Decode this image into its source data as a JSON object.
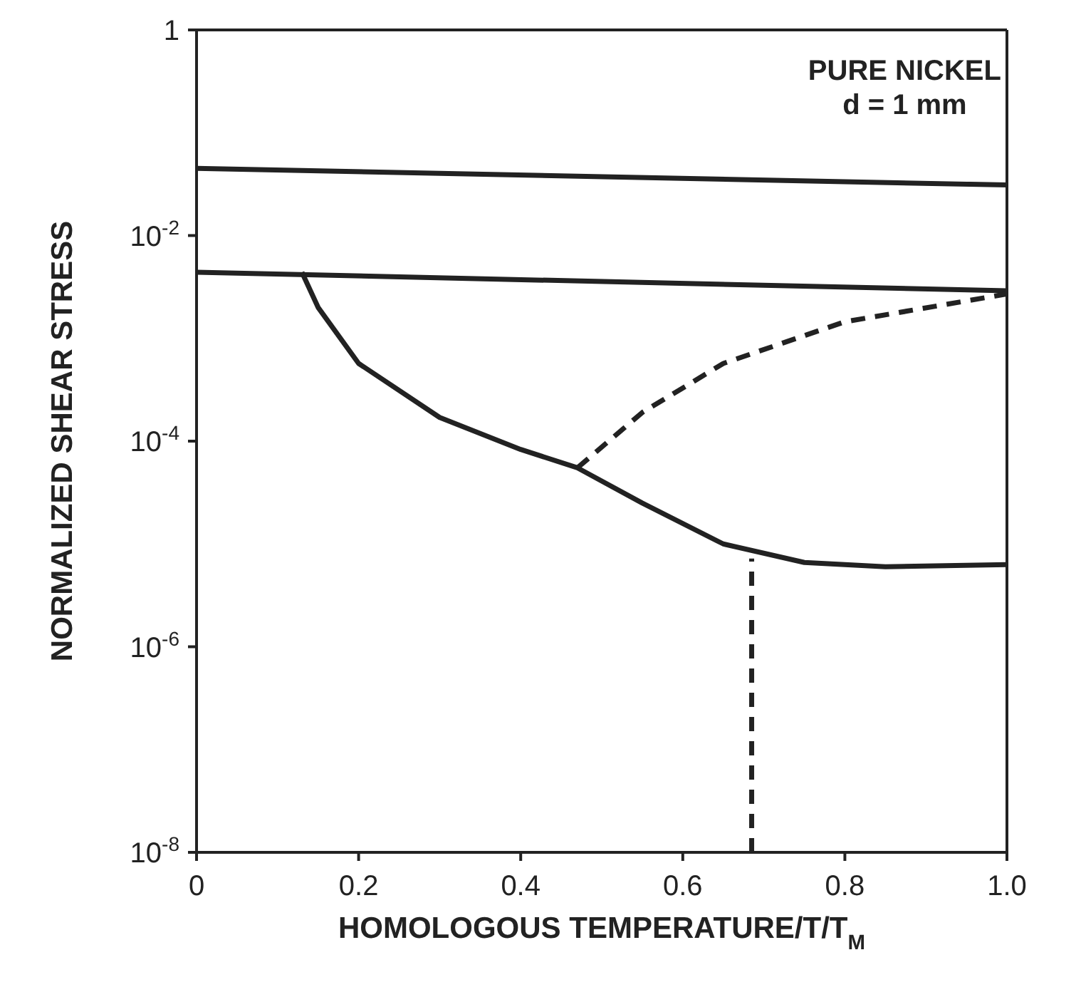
{
  "chart_data": {
    "type": "line",
    "xlabel": "HOMOLOGOUS TEMPERATURE/T/T$_{M}$",
    "ylabel": "NORMALIZED SHEAR STRESS",
    "log": "y",
    "xlim": [
      0,
      1
    ],
    "ylim": [
      1e-08,
      1
    ],
    "xticks": [
      0,
      0.2,
      0.4,
      0.6,
      0.8,
      {
        "value": 1,
        "label": "1.0"
      }
    ],
    "yticks": [
      {
        "value": 1e-08,
        "label": "10$^{-8}$"
      },
      {
        "value": 1e-06,
        "label": "10$^{-6}$"
      },
      {
        "value": 0.0001,
        "label": "10$^{-4}$"
      },
      {
        "value": 0.01,
        "label": "10$^{-2}$"
      },
      1
    ],
    "annotations": [
      "PURE NICKEL",
      "d = 1 mm"
    ],
    "marker": "none",
    "series": [
      {
        "color": "#222222",
        "line_style": "solid",
        "x": [
          0,
          1
        ],
        "values": [
          0.045,
          0.031
        ]
      },
      {
        "color": "#222222",
        "line_style": "solid",
        "x": [
          0,
          1
        ],
        "values": [
          0.0044,
          0.0029
        ]
      },
      {
        "color": "#222222",
        "line_style": "solid",
        "x": [
          0.13,
          0.15,
          0.2,
          0.3,
          0.4,
          0.47,
          0.55,
          0.65,
          0.75,
          0.85,
          1
        ],
        "values": [
          0.0044,
          0.002,
          0.00057,
          0.00017,
          8.3e-05,
          5.5e-05,
          2.5e-05,
          1e-05,
          6.6e-06,
          6e-06,
          6.3e-06
        ]
      },
      {
        "color": "#222222",
        "line_style": "dashed",
        "x": [
          0.47,
          0.55,
          0.65,
          0.8,
          1
        ],
        "values": [
          5.5e-05,
          0.00019,
          0.00057,
          0.00145,
          0.0027
        ]
      },
      {
        "color": "#222222",
        "line_style": "dashed",
        "x": [
          0.685,
          0.685
        ],
        "values": [
          1e-08,
          7.2e-06
        ]
      }
    ]
  }
}
